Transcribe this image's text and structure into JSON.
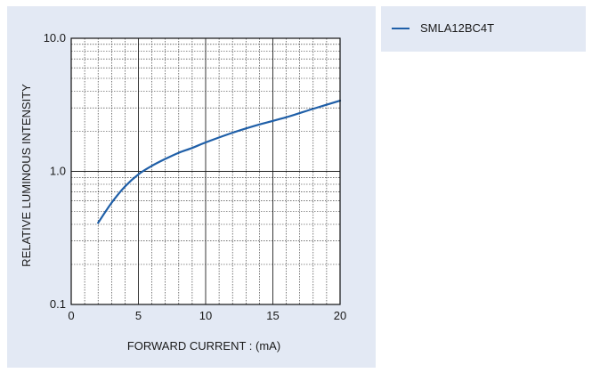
{
  "chart_data": {
    "type": "line",
    "ylabel": "RELATIVE  LUMINOUS  INTENSITY",
    "xlabel": "FORWARD  CURRENT : (mA)",
    "xlim": [
      0,
      20
    ],
    "ylim": [
      0.1,
      10.0
    ],
    "yscale": "log",
    "grid": true,
    "legend_position": "outside-right-top",
    "x_ticks": [
      0,
      5,
      10,
      15,
      20
    ],
    "x_tick_labels": [
      "0",
      "5",
      "10",
      "15",
      "20"
    ],
    "y_ticks": [
      0.1,
      1.0,
      10.0
    ],
    "y_tick_labels": [
      "0.1",
      "1.0",
      "10.0"
    ],
    "series": [
      {
        "name": "SMLA12BC4T",
        "color": "#1f5fa8",
        "x": [
          2,
          3,
          4,
          5,
          6,
          7,
          8,
          9,
          10,
          12,
          14,
          16,
          18,
          20
        ],
        "y": [
          0.41,
          0.58,
          0.77,
          0.95,
          1.1,
          1.24,
          1.38,
          1.5,
          1.65,
          1.95,
          2.25,
          2.55,
          2.95,
          3.4
        ]
      }
    ]
  },
  "legend": {
    "series_label": "SMLA12BC4T"
  }
}
